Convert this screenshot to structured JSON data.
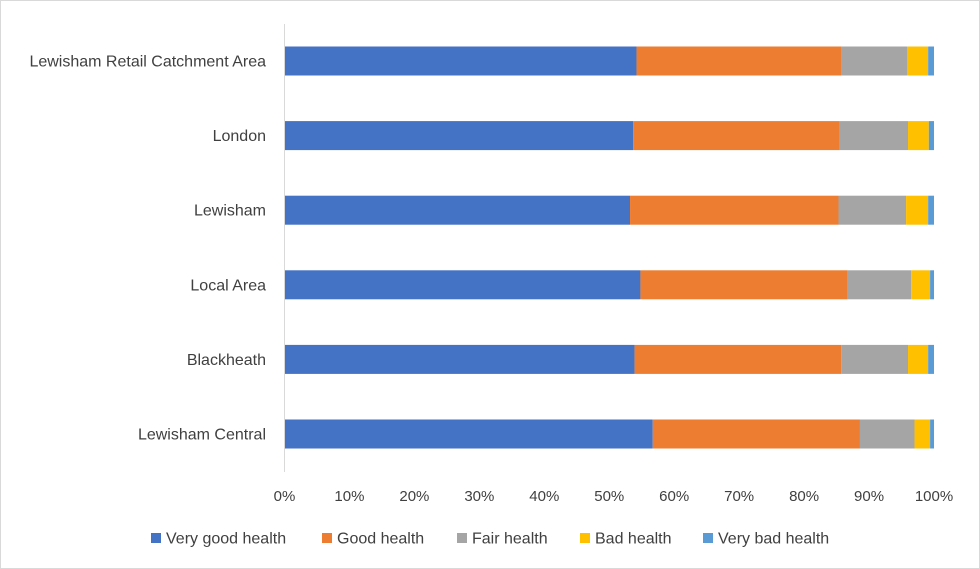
{
  "chart_data": {
    "type": "bar",
    "orientation": "horizontal",
    "stacked": "percent",
    "title": "",
    "xlabel": "",
    "ylabel": "",
    "xlim": [
      0,
      100
    ],
    "x_ticks": [
      "0%",
      "10%",
      "20%",
      "30%",
      "40%",
      "50%",
      "60%",
      "70%",
      "80%",
      "90%",
      "100%"
    ],
    "grid": false,
    "legend_position": "bottom",
    "categories": [
      "Lewisham Retail Catchment Area",
      "London",
      "Lewisham",
      "Local Area",
      "Blackheath",
      "Lewisham Central"
    ],
    "series": [
      {
        "name": "Very good health",
        "color": "#4472C4",
        "values": [
          54.2,
          53.7,
          53.2,
          54.8,
          53.9,
          56.7
        ]
      },
      {
        "name": "Good health",
        "color": "#ED7D31",
        "values": [
          31.6,
          31.8,
          32.1,
          31.9,
          31.8,
          31.9
        ]
      },
      {
        "name": "Fair health",
        "color": "#A5A5A5",
        "values": [
          10.1,
          10.5,
          10.4,
          9.8,
          10.3,
          8.4
        ]
      },
      {
        "name": "Bad health",
        "color": "#FFC000",
        "values": [
          3.2,
          3.2,
          3.4,
          2.9,
          3.1,
          2.4
        ]
      },
      {
        "name": "Very bad health",
        "color": "#5B9BD5",
        "values": [
          0.9,
          0.8,
          0.9,
          0.6,
          0.9,
          0.6
        ]
      }
    ]
  }
}
